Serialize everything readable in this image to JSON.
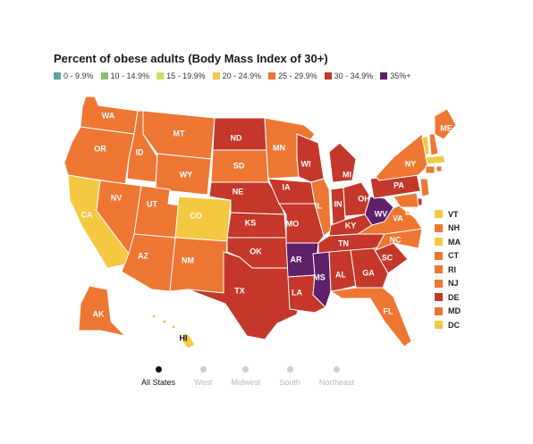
{
  "title": "Percent of obese adults (Body Mass Index of 30+)",
  "legend": [
    {
      "label": "0 - 9.9%",
      "color": "#5aa3a0"
    },
    {
      "label": "10 - 14.9%",
      "color": "#8cc06f"
    },
    {
      "label": "15 - 19.9%",
      "color": "#d3d95c"
    },
    {
      "label": "20 - 24.9%",
      "color": "#f5c842"
    },
    {
      "label": "25 - 29.9%",
      "color": "#ee7633"
    },
    {
      "label": "30 - 34.9%",
      "color": "#c4372a"
    },
    {
      "label": "35%+",
      "color": "#5e2069"
    }
  ],
  "states": [
    {
      "abbr": "WA",
      "bin": 4
    },
    {
      "abbr": "OR",
      "bin": 4
    },
    {
      "abbr": "CA",
      "bin": 3
    },
    {
      "abbr": "NV",
      "bin": 4
    },
    {
      "abbr": "ID",
      "bin": 4
    },
    {
      "abbr": "MT",
      "bin": 4
    },
    {
      "abbr": "WY",
      "bin": 4
    },
    {
      "abbr": "UT",
      "bin": 4
    },
    {
      "abbr": "CO",
      "bin": 3
    },
    {
      "abbr": "AZ",
      "bin": 4
    },
    {
      "abbr": "NM",
      "bin": 4
    },
    {
      "abbr": "ND",
      "bin": 5
    },
    {
      "abbr": "SD",
      "bin": 4
    },
    {
      "abbr": "NE",
      "bin": 5
    },
    {
      "abbr": "KS",
      "bin": 5
    },
    {
      "abbr": "OK",
      "bin": 5
    },
    {
      "abbr": "TX",
      "bin": 5
    },
    {
      "abbr": "MN",
      "bin": 4
    },
    {
      "abbr": "IA",
      "bin": 5
    },
    {
      "abbr": "MO",
      "bin": 5
    },
    {
      "abbr": "AR",
      "bin": 6
    },
    {
      "abbr": "LA",
      "bin": 5
    },
    {
      "abbr": "WI",
      "bin": 5
    },
    {
      "abbr": "IL",
      "bin": 4
    },
    {
      "abbr": "MI",
      "bin": 5
    },
    {
      "abbr": "IN",
      "bin": 5
    },
    {
      "abbr": "OH",
      "bin": 5
    },
    {
      "abbr": "KY",
      "bin": 5
    },
    {
      "abbr": "TN",
      "bin": 5
    },
    {
      "abbr": "MS",
      "bin": 6
    },
    {
      "abbr": "AL",
      "bin": 5
    },
    {
      "abbr": "GA",
      "bin": 5
    },
    {
      "abbr": "FL",
      "bin": 4
    },
    {
      "abbr": "SC",
      "bin": 5
    },
    {
      "abbr": "NC",
      "bin": 4
    },
    {
      "abbr": "VA",
      "bin": 4
    },
    {
      "abbr": "WV",
      "bin": 6
    },
    {
      "abbr": "PA",
      "bin": 5
    },
    {
      "abbr": "NY",
      "bin": 4
    },
    {
      "abbr": "ME",
      "bin": 4
    },
    {
      "abbr": "AK",
      "bin": 4
    },
    {
      "abbr": "HI",
      "bin": 3
    }
  ],
  "small_states": [
    {
      "abbr": "VT",
      "bin": 3
    },
    {
      "abbr": "NH",
      "bin": 4
    },
    {
      "abbr": "MA",
      "bin": 3
    },
    {
      "abbr": "CT",
      "bin": 4
    },
    {
      "abbr": "RI",
      "bin": 4
    },
    {
      "abbr": "NJ",
      "bin": 4
    },
    {
      "abbr": "DE",
      "bin": 5
    },
    {
      "abbr": "MD",
      "bin": 4
    },
    {
      "abbr": "DC",
      "bin": 3
    }
  ],
  "filters": [
    {
      "label": "All States",
      "active": true
    },
    {
      "label": "West",
      "active": false
    },
    {
      "label": "Midwest",
      "active": false
    },
    {
      "label": "South",
      "active": false
    },
    {
      "label": "Northeast",
      "active": false
    }
  ]
}
